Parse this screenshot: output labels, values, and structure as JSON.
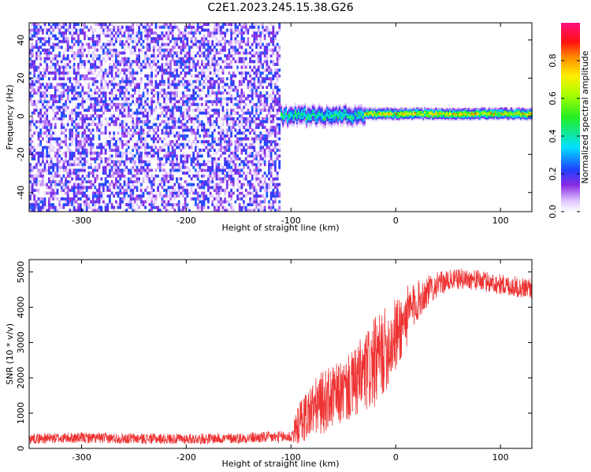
{
  "title": "C2E1.2023.245.15.38.G26",
  "chart_data": [
    {
      "type": "heatmap",
      "xlabel": "Height of straight line (km)",
      "ylabel": "Frequency (Hz)",
      "xlim": [
        -350,
        130
      ],
      "ylim": [
        -50,
        49
      ],
      "xticks": [
        -300,
        -200,
        -100,
        0,
        100
      ],
      "yticks": [
        -40,
        -20,
        0,
        20,
        40
      ],
      "colorbar": {
        "label": "Normalized spectral amplitude",
        "range": [
          0,
          1
        ],
        "ticks": [
          0.0,
          0.2,
          0.4,
          0.6,
          0.8
        ],
        "tick_labels": [
          "0.0",
          "0.2",
          "0.4",
          "0.6",
          "0.8"
        ],
        "colormap": "rainbow: white-purple-blue-cyan-green-yellow-red-magenta"
      },
      "description_regions": [
        {
          "x_range": [
            -350,
            -110
          ],
          "freq_range": [
            -50,
            49
          ],
          "amplitude_range": [
            0.0,
            0.25
          ]
        },
        {
          "x_range": [
            -110,
            -30
          ],
          "freq_center": 0,
          "freq_halfwidth": 5,
          "amplitude_range": [
            0.3,
            0.6
          ]
        },
        {
          "x_range": [
            -30,
            130
          ],
          "freq_center": 1,
          "freq_halfwidth": 3,
          "amplitude_range": [
            0.5,
            0.95
          ]
        }
      ]
    },
    {
      "type": "line",
      "xlabel": "Height of straight line (km)",
      "ylabel": "SNR (10 * v/v)",
      "xlim": [
        -350,
        130
      ],
      "ylim": [
        0,
        5350
      ],
      "xticks": [
        -300,
        -200,
        -100,
        0,
        100
      ],
      "yticks": [
        0,
        1000,
        2000,
        3000,
        4000,
        5000
      ],
      "color": "#ee3333",
      "series": [
        {
          "x": [
            -350,
            -300,
            -250,
            -200,
            -150,
            -100,
            -90,
            -80,
            -70,
            -60,
            -50,
            -40,
            -30,
            -20,
            -10,
            0,
            10,
            20,
            30,
            40,
            50,
            60,
            70,
            80,
            90,
            100,
            110,
            120,
            130
          ],
          "values": [
            280,
            300,
            280,
            270,
            290,
            330,
            800,
            1100,
            1300,
            1450,
            1600,
            1800,
            2100,
            2400,
            2800,
            3200,
            3700,
            4150,
            4450,
            4650,
            4750,
            4800,
            4800,
            4750,
            4700,
            4650,
            4600,
            4550,
            4550
          ],
          "noise_amplitude": [
            150,
            150,
            150,
            150,
            150,
            180,
            700,
            800,
            900,
            900,
            900,
            1000,
            1200,
            1300,
            1200,
            1100,
            900,
            600,
            450,
            350,
            300,
            300,
            300,
            300,
            300,
            300,
            300,
            300,
            300
          ]
        }
      ]
    }
  ]
}
